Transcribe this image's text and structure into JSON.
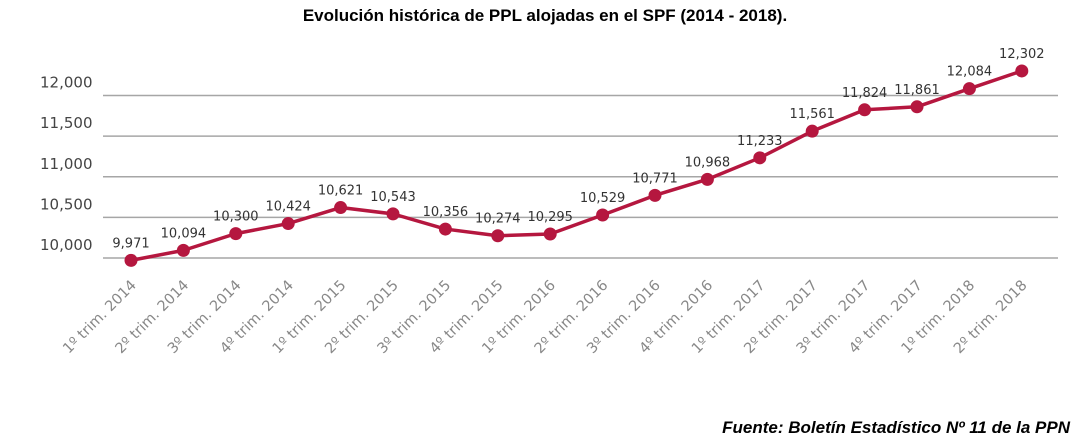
{
  "chart_data": {
    "type": "line",
    "title": "Evolución histórica de PPL alojadas en el SPF (2014 - 2018).",
    "source": "Fuente: Boletín Estadístico Nº 11 de la PPN",
    "categories": [
      "1º trim. 2014",
      "2º trim. 2014",
      "3º trim. 2014",
      "4º trim. 2014",
      "1º trim. 2015",
      "2º trim. 2015",
      "3º trim. 2015",
      "4º trim. 2015",
      "1º trim. 2016",
      "2º trim. 2016",
      "3º trim. 2016",
      "4º trim. 2016",
      "1º trim. 2017",
      "2º trim. 2017",
      "3º trim. 2017",
      "4º trim. 2017",
      "1º trim. 2018",
      "2º trim. 2018"
    ],
    "values": [
      9971,
      10094,
      10300,
      10424,
      10621,
      10543,
      10356,
      10274,
      10295,
      10529,
      10771,
      10968,
      11233,
      11561,
      11824,
      11861,
      12084,
      12302
    ],
    "value_labels": [
      "9,971",
      "10,094",
      "10,300",
      "10,424",
      "10,621",
      "10,543",
      "10,356",
      "10,274",
      "10,295",
      "10,529",
      "10,771",
      "10,968",
      "11,233",
      "11,561",
      "11,824",
      "11,861",
      "12,084",
      "12,302"
    ],
    "y_ticks": [
      10000,
      10500,
      11000,
      11500,
      12000
    ],
    "y_tick_labels": [
      "10,000",
      "10,500",
      "11,000",
      "11,500",
      "12,000"
    ],
    "ylim": [
      10000,
      12000
    ],
    "grid": true,
    "legend": "none",
    "colors": {
      "line": "#b5173f",
      "grid": "#a6a6a6",
      "label": "#333333",
      "axis_text": "#888888"
    }
  }
}
